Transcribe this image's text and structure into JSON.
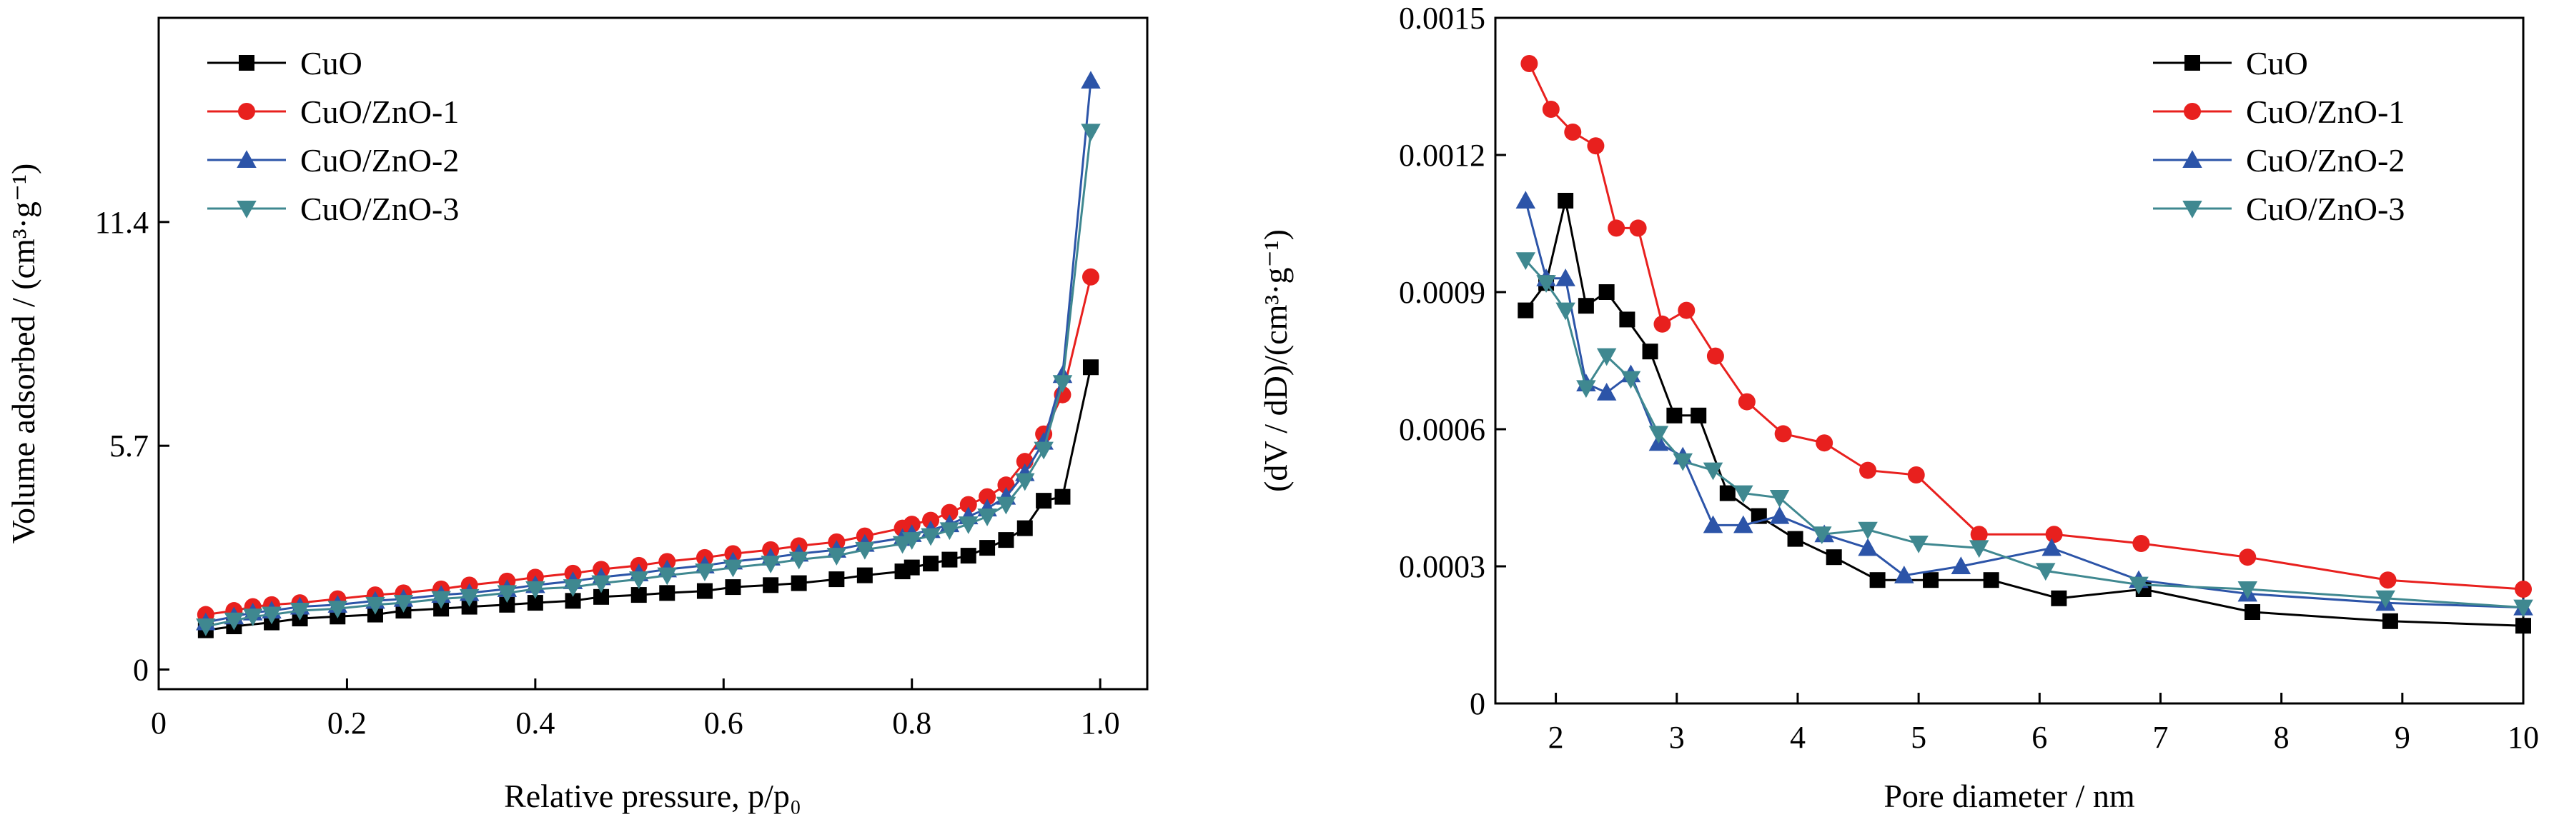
{
  "chart_data": [
    {
      "type": "line",
      "xlabel": "Relative pressure, p/p₀",
      "ylabel": "Volume adsorbed / (cm³·g⁻¹)",
      "xlim": [
        0,
        1.05
      ],
      "ylim": [
        -0.5,
        16.6
      ],
      "xticks": [
        "0",
        "0.2",
        "0.4",
        "0.6",
        "0.8",
        "1.0"
      ],
      "xtick_values": [
        0,
        0.2,
        0.4,
        0.6,
        0.8,
        1.0
      ],
      "yticks": [
        "0",
        "5.7",
        "11.4"
      ],
      "ytick_values": [
        0,
        5.7,
        11.4
      ],
      "grid": false,
      "legend": "top-left",
      "series": [
        {
          "name": "CuO",
          "color": "#000000",
          "marker": "square",
          "points": [
            [
              0.05,
              1.0
            ],
            [
              0.08,
              1.1
            ],
            [
              0.12,
              1.2
            ],
            [
              0.15,
              1.3
            ],
            [
              0.19,
              1.35
            ],
            [
              0.23,
              1.4
            ],
            [
              0.26,
              1.5
            ],
            [
              0.3,
              1.55
            ],
            [
              0.33,
              1.6
            ],
            [
              0.37,
              1.65
            ],
            [
              0.4,
              1.7
            ],
            [
              0.44,
              1.75
            ],
            [
              0.47,
              1.85
            ],
            [
              0.51,
              1.9
            ],
            [
              0.54,
              1.95
            ],
            [
              0.58,
              2.0
            ],
            [
              0.61,
              2.1
            ],
            [
              0.65,
              2.15
            ],
            [
              0.68,
              2.2
            ],
            [
              0.72,
              2.3
            ],
            [
              0.75,
              2.4
            ],
            [
              0.79,
              2.5
            ],
            [
              0.8,
              2.6
            ],
            [
              0.82,
              2.7
            ],
            [
              0.84,
              2.8
            ],
            [
              0.86,
              2.9
            ],
            [
              0.88,
              3.1
            ],
            [
              0.9,
              3.3
            ],
            [
              0.92,
              3.6
            ],
            [
              0.94,
              4.3
            ],
            [
              0.96,
              4.4
            ],
            [
              0.99,
              7.7
            ]
          ]
        },
        {
          "name": "CuO/ZnO-1",
          "color": "#e8201e",
          "marker": "circle",
          "points": [
            [
              0.05,
              1.4
            ],
            [
              0.08,
              1.5
            ],
            [
              0.1,
              1.6
            ],
            [
              0.12,
              1.65
            ],
            [
              0.15,
              1.7
            ],
            [
              0.19,
              1.8
            ],
            [
              0.23,
              1.9
            ],
            [
              0.26,
              1.95
            ],
            [
              0.3,
              2.05
            ],
            [
              0.33,
              2.15
            ],
            [
              0.37,
              2.25
            ],
            [
              0.4,
              2.35
            ],
            [
              0.44,
              2.45
            ],
            [
              0.47,
              2.55
            ],
            [
              0.51,
              2.65
            ],
            [
              0.54,
              2.75
            ],
            [
              0.58,
              2.85
            ],
            [
              0.61,
              2.95
            ],
            [
              0.65,
              3.05
            ],
            [
              0.68,
              3.15
            ],
            [
              0.72,
              3.25
            ],
            [
              0.75,
              3.4
            ],
            [
              0.79,
              3.6
            ],
            [
              0.8,
              3.7
            ],
            [
              0.82,
              3.8
            ],
            [
              0.84,
              4.0
            ],
            [
              0.86,
              4.2
            ],
            [
              0.88,
              4.4
            ],
            [
              0.9,
              4.7
            ],
            [
              0.92,
              5.3
            ],
            [
              0.94,
              6.0
            ],
            [
              0.96,
              7.0
            ],
            [
              0.99,
              10.0
            ]
          ]
        },
        {
          "name": "CuO/ZnO-2",
          "color": "#2c54a8",
          "marker": "triangle-up",
          "points": [
            [
              0.05,
              1.2
            ],
            [
              0.08,
              1.35
            ],
            [
              0.1,
              1.45
            ],
            [
              0.12,
              1.5
            ],
            [
              0.15,
              1.6
            ],
            [
              0.19,
              1.65
            ],
            [
              0.23,
              1.75
            ],
            [
              0.26,
              1.8
            ],
            [
              0.3,
              1.9
            ],
            [
              0.33,
              1.95
            ],
            [
              0.37,
              2.05
            ],
            [
              0.4,
              2.15
            ],
            [
              0.44,
              2.25
            ],
            [
              0.47,
              2.35
            ],
            [
              0.51,
              2.45
            ],
            [
              0.54,
              2.55
            ],
            [
              0.58,
              2.65
            ],
            [
              0.61,
              2.75
            ],
            [
              0.65,
              2.85
            ],
            [
              0.68,
              2.95
            ],
            [
              0.72,
              3.05
            ],
            [
              0.75,
              3.2
            ],
            [
              0.79,
              3.35
            ],
            [
              0.8,
              3.45
            ],
            [
              0.82,
              3.55
            ],
            [
              0.84,
              3.7
            ],
            [
              0.86,
              3.9
            ],
            [
              0.88,
              4.1
            ],
            [
              0.9,
              4.4
            ],
            [
              0.92,
              5.0
            ],
            [
              0.94,
              5.8
            ],
            [
              0.96,
              7.5
            ],
            [
              0.99,
              15.0
            ]
          ]
        },
        {
          "name": "CuO/ZnO-3",
          "color": "#3f8890",
          "marker": "triangle-down",
          "points": [
            [
              0.05,
              1.1
            ],
            [
              0.08,
              1.25
            ],
            [
              0.1,
              1.35
            ],
            [
              0.12,
              1.4
            ],
            [
              0.15,
              1.5
            ],
            [
              0.19,
              1.55
            ],
            [
              0.23,
              1.65
            ],
            [
              0.26,
              1.7
            ],
            [
              0.3,
              1.8
            ],
            [
              0.33,
              1.85
            ],
            [
              0.37,
              1.95
            ],
            [
              0.4,
              2.05
            ],
            [
              0.44,
              2.1
            ],
            [
              0.47,
              2.2
            ],
            [
              0.51,
              2.3
            ],
            [
              0.54,
              2.4
            ],
            [
              0.58,
              2.5
            ],
            [
              0.61,
              2.6
            ],
            [
              0.65,
              2.7
            ],
            [
              0.68,
              2.8
            ],
            [
              0.72,
              2.9
            ],
            [
              0.75,
              3.05
            ],
            [
              0.79,
              3.2
            ],
            [
              0.8,
              3.3
            ],
            [
              0.82,
              3.4
            ],
            [
              0.84,
              3.55
            ],
            [
              0.86,
              3.7
            ],
            [
              0.88,
              3.9
            ],
            [
              0.9,
              4.2
            ],
            [
              0.92,
              4.8
            ],
            [
              0.94,
              5.6
            ],
            [
              0.96,
              7.3
            ],
            [
              0.99,
              13.7
            ]
          ]
        }
      ]
    },
    {
      "type": "line",
      "xlabel": "Pore diameter / nm",
      "ylabel": "(dV / dD)/(cm³·g⁻¹)",
      "xlim": [
        1.5,
        10
      ],
      "ylim": [
        0,
        0.0015
      ],
      "xticks": [
        "2",
        "3",
        "4",
        "5",
        "6",
        "7",
        "8",
        "9",
        "10"
      ],
      "xtick_values": [
        2,
        3,
        4,
        5,
        6,
        7,
        8,
        9,
        10
      ],
      "yticks": [
        "0",
        "0.0003",
        "0.0006",
        "0.0009",
        "0.0012",
        "0.0015"
      ],
      "ytick_values": [
        0,
        0.0003,
        0.0006,
        0.0009,
        0.0012,
        0.0015
      ],
      "grid": false,
      "legend": "top-right",
      "series": [
        {
          "name": "CuO",
          "color": "#000000",
          "marker": "square",
          "points": [
            [
              1.75,
              0.00086
            ],
            [
              1.92,
              0.00092
            ],
            [
              2.08,
              0.0011
            ],
            [
              2.25,
              0.00087
            ],
            [
              2.42,
              0.0009
            ],
            [
              2.59,
              0.00084
            ],
            [
              2.78,
              0.00077
            ],
            [
              2.98,
              0.00063
            ],
            [
              3.18,
              0.00063
            ],
            [
              3.42,
              0.00046
            ],
            [
              3.68,
              0.00041
            ],
            [
              3.98,
              0.00036
            ],
            [
              4.3,
              0.00032
            ],
            [
              4.66,
              0.00027
            ],
            [
              5.1,
              0.00027
            ],
            [
              5.6,
              0.00027
            ],
            [
              6.16,
              0.00023
            ],
            [
              6.86,
              0.00025
            ],
            [
              7.76,
              0.0002
            ],
            [
              8.9,
              0.00018
            ],
            [
              10.0,
              0.00017
            ]
          ]
        },
        {
          "name": "CuO/ZnO-1",
          "color": "#e8201e",
          "marker": "circle",
          "points": [
            [
              1.78,
              0.0014
            ],
            [
              1.96,
              0.0013
            ],
            [
              2.14,
              0.00125
            ],
            [
              2.33,
              0.00122
            ],
            [
              2.5,
              0.00104
            ],
            [
              2.68,
              0.00104
            ],
            [
              2.88,
              0.00083
            ],
            [
              3.08,
              0.00086
            ],
            [
              3.32,
              0.00076
            ],
            [
              3.58,
              0.00066
            ],
            [
              3.88,
              0.00059
            ],
            [
              4.22,
              0.00057
            ],
            [
              4.58,
              0.00051
            ],
            [
              4.98,
              0.0005
            ],
            [
              5.5,
              0.00037
            ],
            [
              6.12,
              0.00037
            ],
            [
              6.84,
              0.00035
            ],
            [
              7.72,
              0.00032
            ],
            [
              8.88,
              0.00027
            ],
            [
              10.0,
              0.00025
            ]
          ]
        },
        {
          "name": "CuO/ZnO-2",
          "color": "#2c54a8",
          "marker": "triangle-up",
          "points": [
            [
              1.75,
              0.0011
            ],
            [
              1.92,
              0.00093
            ],
            [
              2.08,
              0.00093
            ],
            [
              2.25,
              0.0007
            ],
            [
              2.42,
              0.00068
            ],
            [
              2.62,
              0.00072
            ],
            [
              2.85,
              0.00057
            ],
            [
              3.05,
              0.00054
            ],
            [
              3.3,
              0.00039
            ],
            [
              3.55,
              0.00039
            ],
            [
              3.85,
              0.00041
            ],
            [
              4.22,
              0.00037
            ],
            [
              4.58,
              0.00034
            ],
            [
              4.88,
              0.00028
            ],
            [
              5.35,
              0.0003
            ],
            [
              6.1,
              0.00034
            ],
            [
              6.82,
              0.00027
            ],
            [
              7.72,
              0.00024
            ],
            [
              8.86,
              0.00022
            ],
            [
              10.0,
              0.00021
            ]
          ]
        },
        {
          "name": "CuO/ZnO-3",
          "color": "#3f8890",
          "marker": "triangle-down",
          "points": [
            [
              1.75,
              0.00097
            ],
            [
              1.92,
              0.00092
            ],
            [
              2.08,
              0.00086
            ],
            [
              2.25,
              0.00069
            ],
            [
              2.42,
              0.00076
            ],
            [
              2.62,
              0.00071
            ],
            [
              2.85,
              0.00059
            ],
            [
              3.05,
              0.00053
            ],
            [
              3.3,
              0.00051
            ],
            [
              3.55,
              0.00046
            ],
            [
              3.85,
              0.00045
            ],
            [
              4.2,
              0.00037
            ],
            [
              4.58,
              0.00038
            ],
            [
              5.0,
              0.00035
            ],
            [
              5.5,
              0.00034
            ],
            [
              6.05,
              0.00029
            ],
            [
              6.82,
              0.00026
            ],
            [
              7.72,
              0.00025
            ],
            [
              8.86,
              0.00023
            ],
            [
              10.0,
              0.00021
            ]
          ]
        }
      ]
    }
  ]
}
